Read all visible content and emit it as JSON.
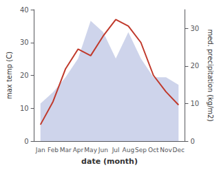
{
  "chart_data": {
    "type": "line",
    "categories": [
      "Jan",
      "Feb",
      "Mar",
      "Apr",
      "May",
      "Jun",
      "Jul",
      "Aug",
      "Sep",
      "Oct",
      "Nov",
      "Dec"
    ],
    "series": [
      {
        "name": "max temp (C)",
        "type": "line",
        "axis": "y",
        "color": "#c0392b",
        "values": [
          5,
          12,
          22,
          28,
          26,
          32,
          37,
          35,
          30,
          20,
          15,
          11
        ]
      },
      {
        "name": "med. precipitation (kg/m2)",
        "type": "area",
        "axis": "y2",
        "color": "#c5cce8",
        "values": [
          10,
          13,
          17,
          22,
          32,
          29,
          22,
          29,
          22,
          17,
          17,
          15
        ]
      }
    ],
    "xlabel": "date (month)",
    "ylabel": "max temp (C)",
    "y2label": "med. precipitation (kg/m2)",
    "ylim": [
      0,
      40
    ],
    "yticks": [
      0,
      10,
      20,
      30,
      40
    ],
    "y2lim": [
      0,
      35
    ],
    "y2ticks": [
      0,
      10,
      20,
      30
    ],
    "grid": false,
    "legend": false
  }
}
